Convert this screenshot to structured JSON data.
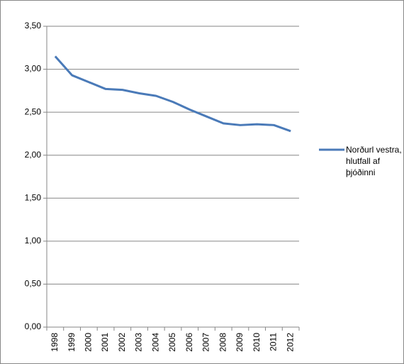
{
  "chart_data": {
    "type": "line",
    "categories": [
      "1998",
      "1999",
      "2000",
      "2001",
      "2002",
      "2003",
      "2004",
      "2005",
      "2006",
      "2007",
      "2008",
      "2009",
      "2010",
      "2011",
      "2012"
    ],
    "series": [
      {
        "name": "Norðurl vestra, hlutfall af þjóðinni",
        "color": "#4a7ab8",
        "values": [
          3.15,
          2.93,
          2.85,
          2.77,
          2.76,
          2.72,
          2.69,
          2.62,
          2.53,
          2.45,
          2.37,
          2.35,
          2.36,
          2.35,
          2.28
        ]
      }
    ],
    "ylim": [
      0,
      3.5
    ],
    "yticks": [
      {
        "value": 0,
        "label": "0,00"
      },
      {
        "value": 0.5,
        "label": "0,50"
      },
      {
        "value": 1,
        "label": "1,00"
      },
      {
        "value": 1.5,
        "label": "1,50"
      },
      {
        "value": 2,
        "label": "2,00"
      },
      {
        "value": 2.5,
        "label": "2,50"
      },
      {
        "value": 3,
        "label": "3,00"
      },
      {
        "value": 3.5,
        "label": "3,50"
      }
    ],
    "grid": true,
    "legend": "right"
  }
}
